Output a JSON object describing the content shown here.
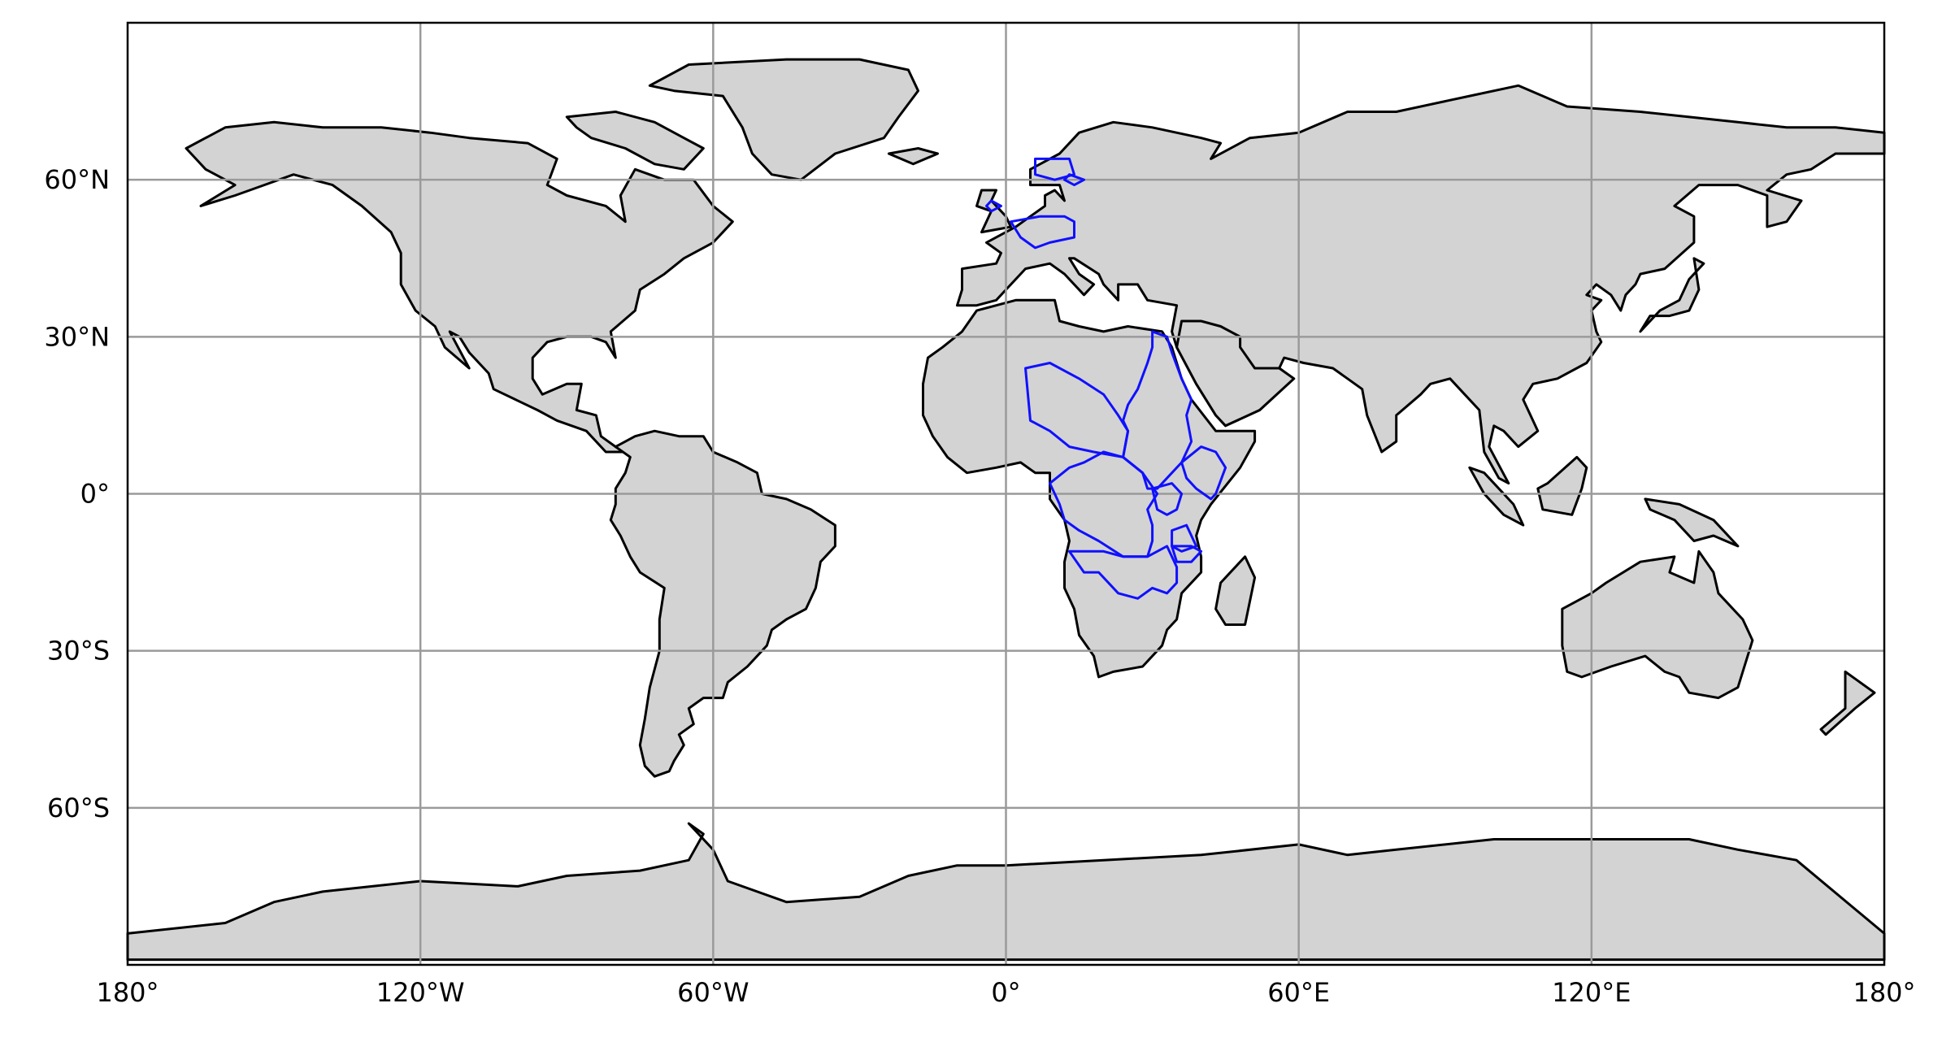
{
  "map": {
    "projection": "PlateCarree",
    "extent": {
      "lon": [
        -180,
        180
      ],
      "lat": [
        -90,
        90
      ]
    },
    "land_color": "#d3d3d3",
    "coastline_color": "#000000",
    "gridline_color": "#9a9a9a",
    "basin_outline_color": "#1010ff",
    "gridlines": true,
    "x_ticks": [
      {
        "lon": -180,
        "label": "180°"
      },
      {
        "lon": -120,
        "label": "120°W"
      },
      {
        "lon": -60,
        "label": "60°W"
      },
      {
        "lon": 0,
        "label": "0°"
      },
      {
        "lon": 60,
        "label": "60°E"
      },
      {
        "lon": 120,
        "label": "120°E"
      },
      {
        "lon": 180,
        "label": "180°"
      }
    ],
    "y_ticks": [
      {
        "lat": 60,
        "label": "60°N"
      },
      {
        "lat": 30,
        "label": "30°N"
      },
      {
        "lat": 0,
        "label": "0°"
      },
      {
        "lat": -30,
        "label": "30°S"
      },
      {
        "lat": -60,
        "label": "60°S"
      }
    ],
    "highlighted_regions": [
      {
        "region": "Northern Europe",
        "count": 2
      },
      {
        "region": "Africa",
        "count": 8
      }
    ]
  }
}
